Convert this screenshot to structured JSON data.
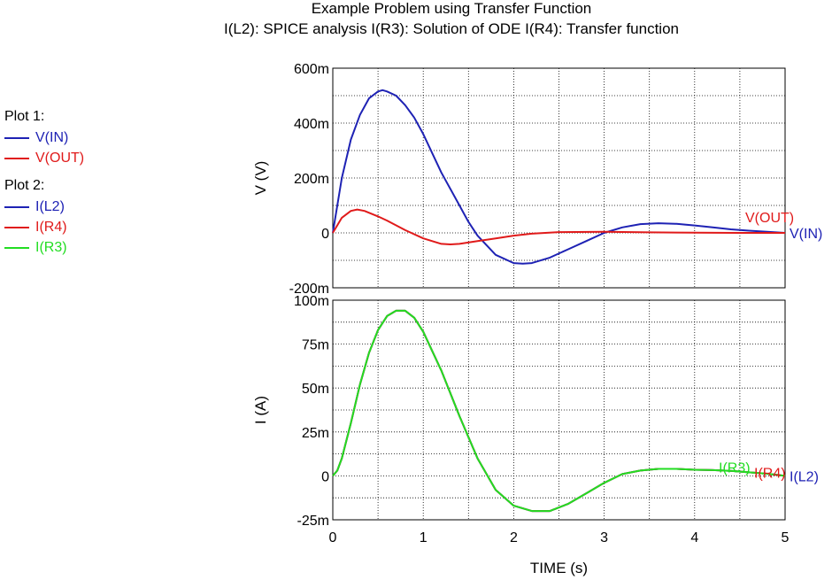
{
  "title": "Example Problem using Transfer Function",
  "subtitle": "I(L2): SPICE analysis    I(R3): Solution of ODE   I(R4): Transfer function",
  "legend": {
    "plot1_header": "Plot 1:",
    "plot1_items": [
      {
        "label": "V(IN)",
        "color": "#1e22b4"
      },
      {
        "label": "V(OUT)",
        "color": "#e01a1a"
      }
    ],
    "plot2_header": "Plot 2:",
    "plot2_items": [
      {
        "label": "I(L2)",
        "color": "#1e22b4"
      },
      {
        "label": "I(R4)",
        "color": "#e01a1a"
      },
      {
        "label": "I(R3)",
        "color": "#22dd22"
      }
    ]
  },
  "chart_data": [
    {
      "type": "line",
      "ylabel": "V  (V)",
      "xlabel": "",
      "xlim": [
        0,
        5
      ],
      "ylim": [
        -0.2,
        0.6
      ],
      "yticks": [
        -0.2,
        0,
        0.2,
        0.4,
        0.6
      ],
      "ytick_labels": [
        "-200m",
        "0",
        "200m",
        "400m",
        "600m"
      ],
      "grid": true,
      "series": [
        {
          "name": "V(IN)",
          "color": "#1e22b4",
          "x": [
            0,
            0.05,
            0.1,
            0.2,
            0.3,
            0.4,
            0.5,
            0.55,
            0.6,
            0.7,
            0.8,
            0.9,
            1.0,
            1.2,
            1.4,
            1.5,
            1.6,
            1.8,
            2.0,
            2.1,
            2.2,
            2.4,
            2.6,
            2.8,
            3.0,
            3.2,
            3.4,
            3.6,
            3.8,
            4.0,
            4.2,
            4.4,
            4.6,
            4.8,
            5.0
          ],
          "y": [
            0,
            0.1,
            0.2,
            0.34,
            0.43,
            0.49,
            0.515,
            0.52,
            0.515,
            0.5,
            0.465,
            0.42,
            0.36,
            0.22,
            0.1,
            0.04,
            -0.01,
            -0.08,
            -0.11,
            -0.112,
            -0.11,
            -0.09,
            -0.06,
            -0.03,
            0,
            0.02,
            0.032,
            0.035,
            0.033,
            0.027,
            0.02,
            0.013,
            0.008,
            0.004,
            0
          ]
        },
        {
          "name": "V(OUT)",
          "color": "#e01a1a",
          "x": [
            0,
            0.1,
            0.2,
            0.27,
            0.35,
            0.5,
            0.6,
            0.8,
            1.0,
            1.2,
            1.3,
            1.4,
            1.6,
            1.8,
            2.0,
            2.2,
            2.5,
            3.0,
            3.5,
            4.0,
            4.5,
            5.0
          ],
          "y": [
            0,
            0.055,
            0.08,
            0.085,
            0.08,
            0.06,
            0.045,
            0.01,
            -0.02,
            -0.04,
            -0.042,
            -0.04,
            -0.03,
            -0.02,
            -0.01,
            -0.003,
            0.003,
            0.004,
            0.002,
            0.001,
            0,
            0
          ]
        }
      ],
      "end_labels": [
        "V(OUT)",
        "V(IN)"
      ]
    },
    {
      "type": "line",
      "ylabel": "I  (A)",
      "xlabel": "TIME  (s)",
      "xlim": [
        0,
        5
      ],
      "xticks": [
        0,
        1,
        2,
        3,
        4,
        5
      ],
      "xtick_labels": [
        "0",
        "1",
        "2",
        "3",
        "4",
        "5"
      ],
      "ylim": [
        -0.025,
        0.1
      ],
      "yticks": [
        -0.025,
        0,
        0.025,
        0.05,
        0.075,
        0.1
      ],
      "ytick_labels": [
        "-25m",
        "0",
        "25m",
        "50m",
        "75m",
        "100m"
      ],
      "grid": true,
      "series": [
        {
          "name": "I(L2)",
          "color": "#1e22b4",
          "x": [
            0,
            0.05,
            0.1,
            0.2,
            0.3,
            0.4,
            0.5,
            0.6,
            0.7,
            0.8,
            0.9,
            1.0,
            1.2,
            1.4,
            1.6,
            1.8,
            2.0,
            2.2,
            2.4,
            2.6,
            2.8,
            3.0,
            3.2,
            3.4,
            3.6,
            3.8,
            4.0,
            4.2,
            4.4,
            4.6,
            4.8,
            5.0
          ],
          "y": [
            0,
            0.003,
            0.01,
            0.03,
            0.052,
            0.07,
            0.083,
            0.091,
            0.094,
            0.094,
            0.09,
            0.082,
            0.06,
            0.034,
            0.01,
            -0.008,
            -0.017,
            -0.02,
            -0.02,
            -0.016,
            -0.01,
            -0.004,
            0.001,
            0.003,
            0.004,
            0.004,
            0.0035,
            0.0033,
            0.0028,
            0.002,
            0.0012,
            0
          ]
        },
        {
          "name": "I(R4)",
          "color": "#e01a1a",
          "x": [
            0,
            0.05,
            0.1,
            0.2,
            0.3,
            0.4,
            0.5,
            0.6,
            0.7,
            0.8,
            0.9,
            1.0,
            1.2,
            1.4,
            1.6,
            1.8,
            2.0,
            2.2,
            2.4,
            2.6,
            2.8,
            3.0,
            3.2,
            3.4,
            3.6,
            3.8,
            4.0,
            4.2,
            4.4,
            4.6,
            4.8,
            5.0
          ],
          "y": [
            0,
            0.003,
            0.01,
            0.03,
            0.052,
            0.07,
            0.083,
            0.091,
            0.094,
            0.094,
            0.09,
            0.082,
            0.06,
            0.034,
            0.01,
            -0.008,
            -0.017,
            -0.02,
            -0.02,
            -0.016,
            -0.01,
            -0.004,
            0.001,
            0.003,
            0.004,
            0.004,
            0.0035,
            0.0033,
            0.0028,
            0.002,
            0.0012,
            0
          ]
        },
        {
          "name": "I(R3)",
          "color": "#22dd22",
          "x": [
            0,
            0.05,
            0.1,
            0.2,
            0.3,
            0.4,
            0.5,
            0.6,
            0.7,
            0.8,
            0.9,
            1.0,
            1.2,
            1.4,
            1.6,
            1.8,
            2.0,
            2.2,
            2.4,
            2.6,
            2.8,
            3.0,
            3.2,
            3.4,
            3.6,
            3.8,
            4.0,
            4.2,
            4.4,
            4.6,
            4.8,
            5.0
          ],
          "y": [
            0,
            0.003,
            0.01,
            0.03,
            0.052,
            0.07,
            0.083,
            0.091,
            0.094,
            0.094,
            0.09,
            0.082,
            0.06,
            0.034,
            0.01,
            -0.008,
            -0.017,
            -0.02,
            -0.02,
            -0.016,
            -0.01,
            -0.004,
            0.001,
            0.003,
            0.004,
            0.004,
            0.0035,
            0.0033,
            0.0028,
            0.002,
            0.0012,
            0
          ]
        }
      ],
      "end_labels": [
        "I(R3)",
        "I(R4)",
        "I(L2)"
      ]
    }
  ]
}
